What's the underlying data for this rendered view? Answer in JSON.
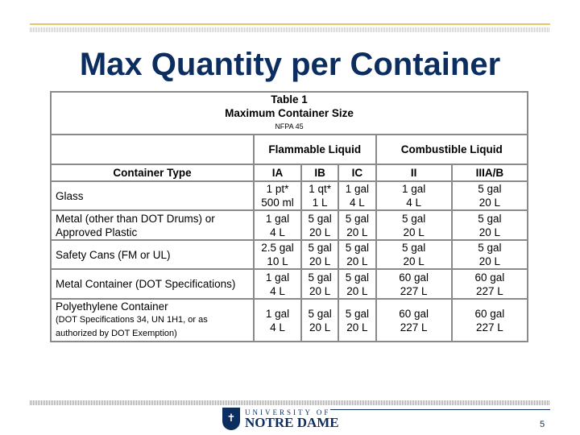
{
  "title": "Max Quantity per Container",
  "table": {
    "caption": "Table 1",
    "subtitle": "Maximum Container Size",
    "source": "NFPA 45",
    "group_flammable": "Flammable Liquid",
    "group_combustible": "Combustible Liquid",
    "headers": [
      "Container Type",
      "IA",
      "IB",
      "IC",
      "II",
      "IIIA/B"
    ],
    "rows": [
      {
        "type": "Glass",
        "note": "",
        "cells": [
          [
            "1 pt*",
            "500 ml"
          ],
          [
            "1 qt*",
            "1 L"
          ],
          [
            "1 gal",
            "4 L"
          ],
          [
            "1 gal",
            "4 L"
          ],
          [
            "5 gal",
            "20 L"
          ]
        ]
      },
      {
        "type": "Metal (other than DOT Drums) or Approved Plastic",
        "note": "",
        "cells": [
          [
            "1 gal",
            "4 L"
          ],
          [
            "5 gal",
            "20 L"
          ],
          [
            "5 gal",
            "20 L"
          ],
          [
            "5 gal",
            "20 L"
          ],
          [
            "5 gal",
            "20 L"
          ]
        ]
      },
      {
        "type": "Safety Cans (FM or UL)",
        "note": "",
        "cells": [
          [
            "2.5 gal",
            "10 L"
          ],
          [
            "5 gal",
            "20 L"
          ],
          [
            "5 gal",
            "20 L"
          ],
          [
            "5 gal",
            "20 L"
          ],
          [
            "5 gal",
            "20 L"
          ]
        ]
      },
      {
        "type": "Metal Container (DOT Specifications)",
        "note": "",
        "cells": [
          [
            "1 gal",
            "4 L"
          ],
          [
            "5 gal",
            "20 L"
          ],
          [
            "5 gal",
            "20 L"
          ],
          [
            "60 gal",
            "227 L"
          ],
          [
            "60 gal",
            "227 L"
          ]
        ]
      },
      {
        "type": "Polyethylene Container",
        "note": "(DOT Specifications 34, UN 1H1, or as authorized by DOT Exemption)",
        "cells": [
          [
            "1 gal",
            "4 L"
          ],
          [
            "5 gal",
            "20 L"
          ],
          [
            "5 gal",
            "20 L"
          ],
          [
            "60 gal",
            "227 L"
          ],
          [
            "60 gal",
            "227 L"
          ]
        ]
      }
    ]
  },
  "footer": {
    "logo_line1": "UNIVERSITY OF",
    "logo_line2": "NOTRE DAME",
    "page_number": "5"
  },
  "colors": {
    "title": "#0c2d5f",
    "gold": "#e2c76a"
  }
}
